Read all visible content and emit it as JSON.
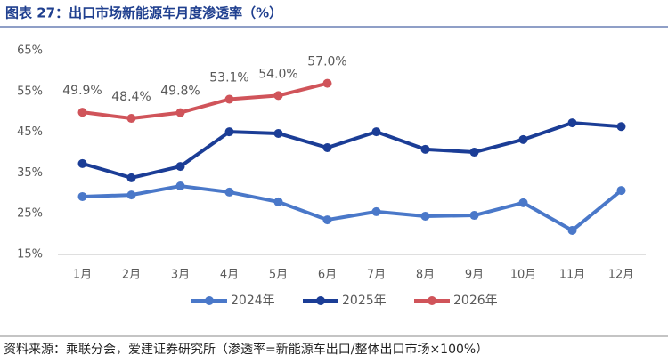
{
  "chart_data": {
    "type": "line",
    "title": "图表 27：出口市场新能源车月度渗透率（%）",
    "source": "资料来源：乘联分会，爱建证券研究所（渗透率=新能源车出口/整体出口市场×100%）",
    "categories": [
      "1月",
      "2月",
      "3月",
      "4月",
      "5月",
      "6月",
      "7月",
      "8月",
      "9月",
      "10月",
      "11月",
      "12月"
    ],
    "series": [
      {
        "name": "2024年",
        "color": "#4a78c9",
        "values": [
          29.2,
          29.6,
          31.8,
          30.3,
          27.9,
          23.5,
          25.5,
          24.4,
          24.6,
          27.7,
          20.9,
          30.7
        ]
      },
      {
        "name": "2025年",
        "color": "#1b3d96",
        "values": [
          37.3,
          33.8,
          36.6,
          45.1,
          44.7,
          41.2,
          45.1,
          40.8,
          40.1,
          43.2,
          47.3,
          46.4
        ]
      },
      {
        "name": "2026年",
        "color": "#d0545a",
        "values": [
          49.9,
          48.4,
          49.8,
          53.1,
          54.0,
          57.0,
          null,
          null,
          null,
          null,
          null,
          null
        ],
        "value_labels": [
          "49.9%",
          "48.4%",
          "49.8%",
          "53.1%",
          "54.0%",
          "57.0%",
          null,
          null,
          null,
          null,
          null,
          null
        ]
      }
    ],
    "ylim": [
      15,
      65
    ],
    "yticks": [
      {
        "value": 15,
        "label": "15%"
      },
      {
        "value": 25,
        "label": "25%"
      },
      {
        "value": 35,
        "label": "35%"
      },
      {
        "value": 45,
        "label": "45%"
      },
      {
        "value": 55,
        "label": "55%"
      },
      {
        "value": 65,
        "label": "65%"
      }
    ],
    "grid": false,
    "legend": "bottom"
  }
}
